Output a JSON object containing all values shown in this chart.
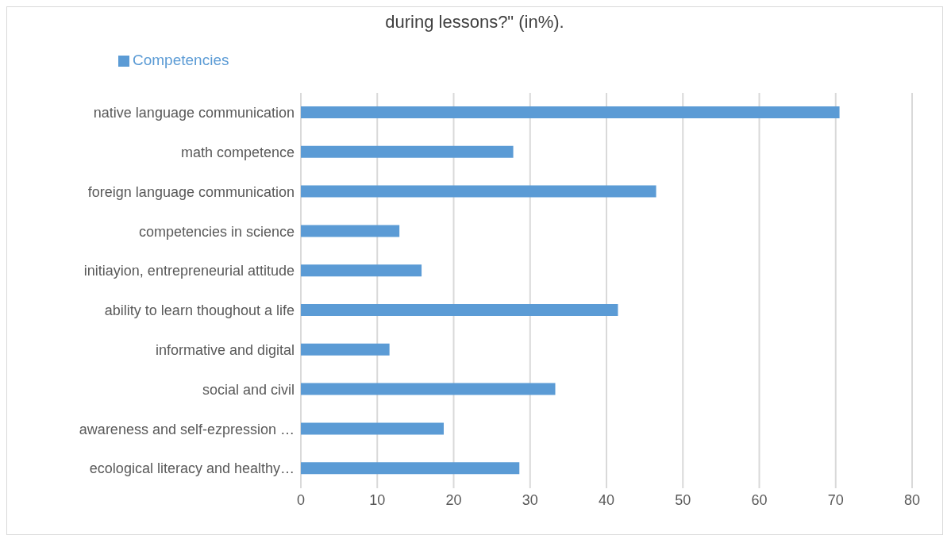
{
  "chart_data": {
    "type": "bar",
    "orientation": "horizontal",
    "title": "during lessons?\" (in%).",
    "categories": [
      "native language communication",
      "math competence",
      "foreign language communication",
      "competencies in science",
      "initiayion, entrepreneurial attitude",
      "ability to learn thoughout a life",
      "informative and digital",
      "social and civil",
      "awareness and self-ezpression …",
      "ecological literacy and healthy…"
    ],
    "series": [
      {
        "name": "Competencies",
        "color": "#5b9bd5",
        "values": [
          70.5,
          27.8,
          46.5,
          12.9,
          15.8,
          41.5,
          11.6,
          33.3,
          18.7,
          28.6
        ]
      }
    ],
    "xlim": [
      0,
      80
    ],
    "xticks": [
      0,
      10,
      20,
      30,
      40,
      50,
      60,
      70,
      80
    ],
    "grid": "x",
    "legend": "top left"
  }
}
